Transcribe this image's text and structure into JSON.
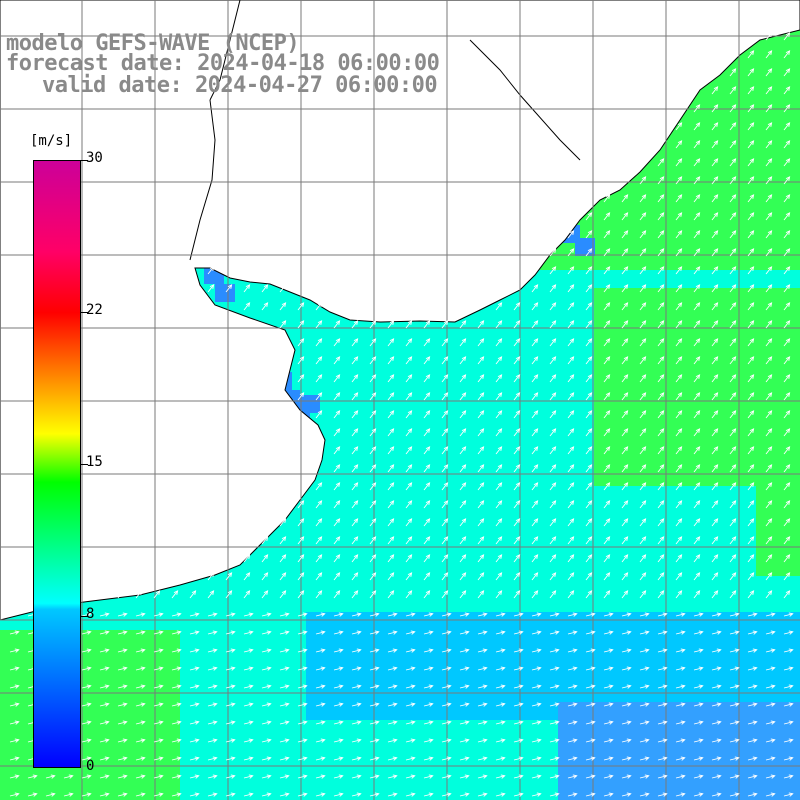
{
  "title": {
    "line1": "modelo GEFS-WAVE (NCEP)",
    "line2": "forecast date: 2024-04-18 06:00:00",
    "line3": "valid date: 2024-04-27 06:00:00"
  },
  "colorbar": {
    "unit": "[m/s]",
    "ticks": [
      "30",
      "22",
      "15",
      "8",
      "0"
    ],
    "min": 0,
    "max": 30,
    "colors": [
      "#0000ff",
      "#00c8ff",
      "#00ffff",
      "#00ff00",
      "#ffff00",
      "#ff9900",
      "#ff0000",
      "#cc0099"
    ]
  },
  "map": {
    "ocean_colors": {
      "low": "#00c8ff",
      "mid": "#00ffdd",
      "high": "#33ff55",
      "coast": "#2a8cff"
    },
    "land_color": "#ffffff",
    "grid_color": "#7a7a7a",
    "arrow_color": "#ffffff"
  }
}
